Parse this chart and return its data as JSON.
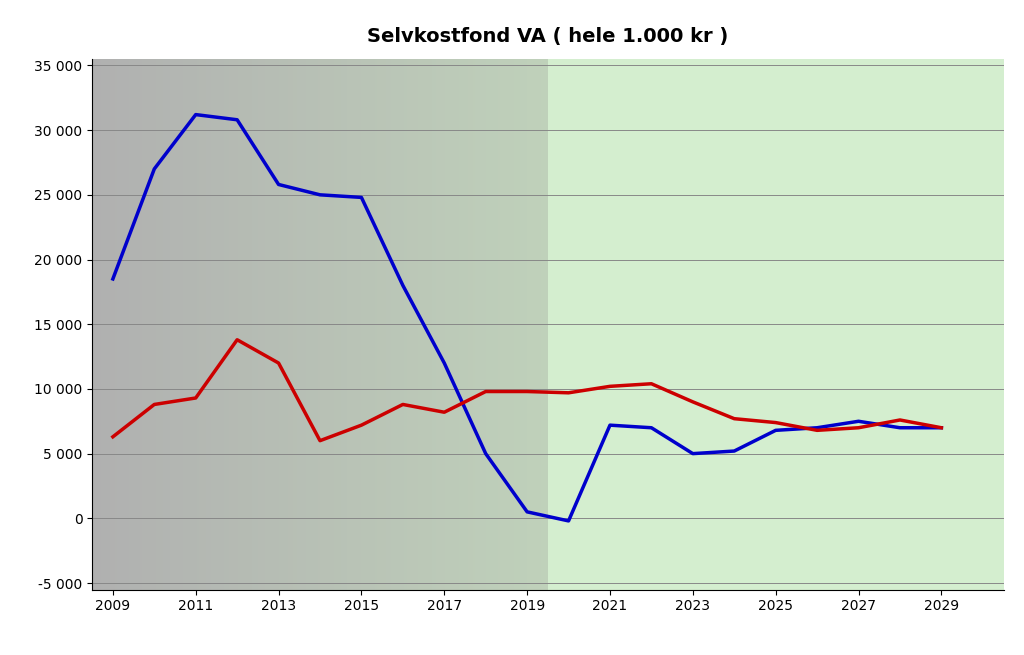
{
  "title": "Selvkostfond VA ( hele 1.000 kr )",
  "blue_x": [
    2009,
    2010,
    2011,
    2012,
    2013,
    2014,
    2015,
    2016,
    2017,
    2018,
    2019,
    2020,
    2021,
    2022,
    2023,
    2024,
    2025,
    2026,
    2027,
    2028,
    2029
  ],
  "blue_y": [
    18500,
    27000,
    31200,
    30800,
    25800,
    25000,
    24800,
    18000,
    12000,
    5000,
    500,
    -200,
    7200,
    7000,
    5000,
    5200,
    6800,
    7000,
    7500,
    7000,
    7000
  ],
  "red_x": [
    2009,
    2010,
    2011,
    2012,
    2013,
    2014,
    2015,
    2016,
    2017,
    2018,
    2019,
    2020,
    2021,
    2022,
    2023,
    2024,
    2025,
    2026,
    2027,
    2028,
    2029
  ],
  "red_y": [
    6300,
    8800,
    9300,
    13800,
    12000,
    6000,
    7200,
    8800,
    8200,
    9800,
    9800,
    9700,
    10200,
    10400,
    9000,
    7700,
    7400,
    6800,
    7000,
    7600,
    7000
  ],
  "blue_color": "#0000CC",
  "red_color": "#CC0000",
  "ylim_min": -5000,
  "ylim_max": 35000,
  "ytick_step": 5000,
  "xtick_start": 2009,
  "xtick_end": 2029,
  "xtick_step": 2,
  "xlim_min": 2008.5,
  "xlim_max": 2030.5,
  "split_x": 2019.5,
  "line_width": 2.5,
  "title_fontsize": 14,
  "tick_fontsize": 10
}
